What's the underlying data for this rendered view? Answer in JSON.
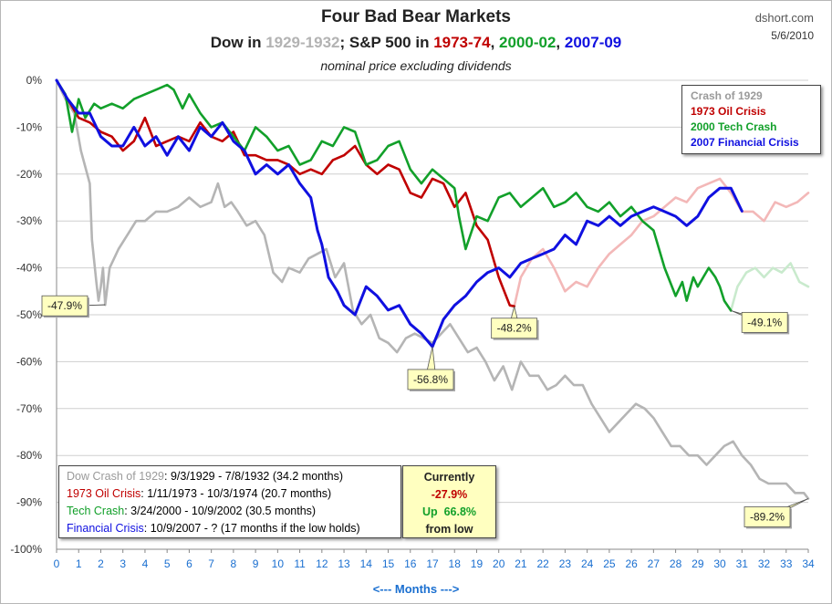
{
  "header": {
    "title": "Four Bad Bear Markets",
    "subtitle_parts": [
      {
        "text": "Dow in ",
        "color": "#222222"
      },
      {
        "text": "1929-1932",
        "color": "#b3b3b3"
      },
      {
        "text": "; S&P 500 in ",
        "color": "#222222"
      },
      {
        "text": "1973-74",
        "color": "#c00000"
      },
      {
        "text": ", ",
        "color": "#222222"
      },
      {
        "text": "2000-02",
        "color": "#12a02a"
      },
      {
        "text": ", ",
        "color": "#222222"
      },
      {
        "text": "2007-09",
        "color": "#1010e0"
      }
    ],
    "note": "nominal price excluding dividends",
    "source": "dshort.com",
    "date": "5/6/2010"
  },
  "legend": [
    {
      "label": "Crash of 1929",
      "color": "#9a9a9a"
    },
    {
      "label": "1973 Oil Crisis",
      "color": "#c00000"
    },
    {
      "label": "2000 Tech Crash",
      "color": "#12a02a"
    },
    {
      "label": "2007 Financial Crisis",
      "color": "#1010e0"
    }
  ],
  "info_box": {
    "rows": [
      {
        "label": "Dow Crash of 1929",
        "rest": ": 9/3/1929  - 7/8/1932  (34.2 months)",
        "color": "#9a9a9a"
      },
      {
        "label": "1973 Oil Crisis",
        "rest": ": 1/11/1973  - 10/3/1974  (20.7 months)",
        "color": "#c00000"
      },
      {
        "label": "Tech Crash",
        "rest": ":  3/24/2000  - 10/9/2002  (30.5 months)",
        "color": "#12a02a"
      },
      {
        "label": "Financial Crisis",
        "rest": ": 10/9/2007  - ?  (17 months if the low holds)",
        "color": "#1010e0"
      }
    ]
  },
  "current_box": {
    "line1": "Currently",
    "line2": "-27.9%",
    "line3_prefix": "Up",
    "line3_value": "66.8%",
    "line4": "from low"
  },
  "x_axis_caption": "<---  Months  --->",
  "chart_data": {
    "type": "line",
    "xlabel": "<---  Months  --->",
    "ylabel": "",
    "xlim": [
      0,
      34
    ],
    "ylim": [
      -100,
      0
    ],
    "x_ticks": [
      "0",
      "1",
      "2",
      "3",
      "4",
      "5",
      "6",
      "7",
      "8",
      "9",
      "10",
      "11",
      "12",
      "13",
      "14",
      "15",
      "16",
      "17",
      "18",
      "19",
      "20",
      "21",
      "22",
      "23",
      "24",
      "25",
      "26",
      "27",
      "28",
      "29",
      "30",
      "31",
      "32",
      "33",
      "34"
    ],
    "y_ticks": [
      "0%",
      "-10%",
      "-20%",
      "-30%",
      "-40%",
      "-50%",
      "-60%",
      "-70%",
      "-80%",
      "-90%",
      "-100%"
    ],
    "grid": true,
    "legend_position": "top-right",
    "series": [
      {
        "name": "Crash of 1929",
        "color": "#b5b5b5",
        "x": [
          0,
          0.4,
          0.8,
          1.1,
          1.5,
          1.6,
          1.8,
          1.9,
          2.0,
          2.1,
          2.2,
          2.4,
          2.8,
          3.2,
          3.6,
          4.0,
          4.5,
          5.0,
          5.5,
          6.0,
          6.5,
          7.0,
          7.3,
          7.6,
          7.9,
          8.2,
          8.6,
          9.0,
          9.4,
          9.8,
          10.2,
          10.5,
          11.0,
          11.4,
          11.8,
          12.2,
          12.6,
          13.0,
          13.4,
          13.8,
          14.2,
          14.6,
          15.0,
          15.4,
          15.8,
          16.2,
          16.6,
          17.0,
          17.4,
          17.8,
          18.2,
          18.6,
          19.0,
          19.4,
          19.8,
          20.2,
          20.6,
          21.0,
          21.4,
          21.8,
          22.2,
          22.6,
          23.0,
          23.4,
          23.8,
          24.2,
          24.6,
          25.0,
          25.4,
          25.8,
          26.2,
          26.6,
          27.0,
          27.4,
          27.8,
          28.2,
          28.6,
          29.0,
          29.4,
          29.8,
          30.2,
          30.6,
          31.0,
          31.4,
          31.8,
          32.2,
          32.6,
          33.0,
          33.4,
          33.8,
          34.0
        ],
        "y": [
          0,
          -4,
          -7,
          -15,
          -22,
          -34,
          -43,
          -47,
          -44,
          -40,
          -47.9,
          -40,
          -36,
          -33,
          -30,
          -30,
          -28,
          -28,
          -27,
          -25,
          -27,
          -26,
          -22,
          -27,
          -26,
          -28,
          -31,
          -30,
          -33,
          -41,
          -43,
          -40,
          -41,
          -38,
          -37,
          -36,
          -42,
          -39,
          -49,
          -52,
          -50,
          -55,
          -56,
          -58,
          -55,
          -54,
          -55,
          -56,
          -54,
          -52,
          -55,
          -58,
          -57,
          -60,
          -64,
          -61,
          -66,
          -60,
          -63,
          -63,
          -66,
          -65,
          -63,
          -65,
          -65,
          -69,
          -72,
          -75,
          -73,
          -71,
          -69,
          -70,
          -72,
          -75,
          -78,
          -78,
          -80,
          -80,
          -82,
          -80,
          -78,
          -77,
          -80,
          -82,
          -85,
          -86,
          -86,
          -86,
          -88,
          -88,
          -89.2
        ]
      },
      {
        "name": "1973 Oil Crisis",
        "color": "#c00000",
        "x": [
          0,
          0.5,
          1.0,
          1.5,
          2.0,
          2.5,
          3.0,
          3.5,
          4.0,
          4.5,
          5.0,
          5.5,
          6.0,
          6.5,
          7.0,
          7.5,
          8.0,
          8.5,
          9.0,
          9.5,
          10.0,
          10.5,
          11.0,
          11.5,
          12.0,
          12.5,
          13.0,
          13.5,
          14.0,
          14.5,
          15.0,
          15.5,
          16.0,
          16.5,
          17.0,
          17.5,
          18.0,
          18.5,
          19.0,
          19.5,
          20.0,
          20.5,
          20.7
        ],
        "y": [
          0,
          -4,
          -8,
          -9,
          -11,
          -12,
          -15,
          -13,
          -8,
          -14,
          -13,
          -12,
          -13,
          -9,
          -12,
          -13,
          -11,
          -16,
          -16,
          -17,
          -17,
          -18,
          -20,
          -19,
          -20,
          -17,
          -16,
          -14,
          -18,
          -20,
          -18,
          -19,
          -24,
          -25,
          -21,
          -22,
          -27,
          -24,
          -31,
          -34,
          -42,
          -48,
          -48.2
        ]
      },
      {
        "name": "1973 Oil Crisis (continued)",
        "color": "#f3b8b8",
        "x": [
          20.7,
          21.0,
          21.5,
          22.0,
          22.5,
          23.0,
          23.5,
          24.0,
          24.5,
          25.0,
          25.5,
          26.0,
          26.5,
          27.0,
          27.5,
          28.0,
          28.5,
          29.0,
          29.5,
          30.0,
          30.5,
          31.0,
          31.5,
          32.0,
          32.5,
          33.0,
          33.5,
          34.0
        ],
        "y": [
          -48.2,
          -42,
          -38,
          -36,
          -40,
          -45,
          -43,
          -44,
          -40,
          -37,
          -35,
          -33,
          -30,
          -29,
          -27,
          -25,
          -26,
          -23,
          -22,
          -21,
          -24,
          -28,
          -28,
          -30,
          -26,
          -27,
          -26,
          -24
        ]
      },
      {
        "name": "2000 Tech Crash",
        "color": "#12a02a",
        "x": [
          0,
          0.4,
          0.7,
          1.0,
          1.3,
          1.7,
          2.0,
          2.5,
          3.0,
          3.5,
          4.0,
          4.5,
          5.0,
          5.3,
          5.7,
          6.0,
          6.5,
          7.0,
          7.5,
          8.0,
          8.5,
          9.0,
          9.5,
          10.0,
          10.5,
          11.0,
          11.5,
          12.0,
          12.5,
          13.0,
          13.5,
          14.0,
          14.5,
          15.0,
          15.5,
          16.0,
          16.5,
          17.0,
          17.5,
          18.0,
          18.2,
          18.5,
          19.0,
          19.5,
          20.0,
          20.5,
          21.0,
          21.5,
          22.0,
          22.5,
          23.0,
          23.5,
          24.0,
          24.5,
          25.0,
          25.5,
          26.0,
          26.5,
          27.0,
          27.5,
          28.0,
          28.3,
          28.5,
          28.8,
          29.0,
          29.5,
          29.8,
          30.0,
          30.2,
          30.5
        ],
        "y": [
          0,
          -3,
          -11,
          -4,
          -8,
          -5,
          -6,
          -5,
          -6,
          -4,
          -3,
          -2,
          -1,
          -2,
          -6,
          -3,
          -7,
          -10,
          -9,
          -12,
          -15,
          -10,
          -12,
          -15,
          -14,
          -18,
          -17,
          -13,
          -14,
          -10,
          -11,
          -18,
          -17,
          -14,
          -13,
          -19,
          -22,
          -19,
          -21,
          -23,
          -29,
          -36,
          -29,
          -30,
          -25,
          -24,
          -27,
          -25,
          -23,
          -27,
          -26,
          -24,
          -27,
          -28,
          -26,
          -29,
          -27,
          -30,
          -32,
          -40,
          -46,
          -43,
          -47,
          -42,
          -44,
          -40,
          -42,
          -44,
          -47,
          -49.1
        ]
      },
      {
        "name": "2000 Tech Crash (continued)",
        "color": "#c9eacd",
        "x": [
          30.5,
          30.8,
          31.2,
          31.6,
          32.0,
          32.4,
          32.8,
          33.2,
          33.6,
          34.0
        ],
        "y": [
          -49.1,
          -44,
          -41,
          -40,
          -42,
          -40,
          -41,
          -39,
          -43,
          -44
        ]
      },
      {
        "name": "2007 Financial Crisis",
        "color": "#1010e0",
        "x": [
          0,
          0.5,
          1.0,
          1.5,
          2.0,
          2.5,
          3.0,
          3.5,
          4.0,
          4.5,
          5.0,
          5.5,
          6.0,
          6.5,
          7.0,
          7.5,
          8.0,
          8.5,
          9.0,
          9.5,
          10.0,
          10.5,
          11.0,
          11.5,
          11.8,
          12.0,
          12.3,
          12.7,
          13.0,
          13.5,
          14.0,
          14.5,
          15.0,
          15.5,
          16.0,
          16.5,
          17.0,
          17.5,
          18.0,
          18.5,
          19.0,
          19.5,
          20.0,
          20.5,
          21.0,
          21.5,
          22.0,
          22.5,
          23.0,
          23.5,
          24.0,
          24.5,
          25.0,
          25.5,
          26.0,
          26.5,
          27.0,
          27.5,
          28.0,
          28.5,
          29.0,
          29.5,
          30.0,
          30.5,
          31.0
        ],
        "y": [
          0,
          -4,
          -7,
          -7,
          -12,
          -14,
          -14,
          -10,
          -14,
          -12,
          -16,
          -12,
          -15,
          -10,
          -12,
          -9,
          -13,
          -15,
          -20,
          -18,
          -20,
          -18,
          -22,
          -25,
          -32,
          -35,
          -42,
          -45,
          -48,
          -50,
          -44,
          -46,
          -49,
          -48,
          -52,
          -54,
          -56.8,
          -51,
          -48,
          -46,
          -43,
          -41,
          -40,
          -42,
          -39,
          -38,
          -37,
          -36,
          -33,
          -35,
          -30,
          -31,
          -29,
          -31,
          -29,
          -28,
          -27,
          -28,
          -29,
          -31,
          -29,
          -25,
          -23,
          -23,
          -27.9
        ]
      }
    ],
    "annotations": [
      {
        "text": "-47.9%",
        "x": 2.2,
        "y": -47.9
      },
      {
        "text": "-56.8%",
        "x": 17.0,
        "y": -56.8
      },
      {
        "text": "-48.2%",
        "x": 20.7,
        "y": -48.2
      },
      {
        "text": "-49.1%",
        "x": 30.5,
        "y": -49.1
      },
      {
        "text": "-89.2%",
        "x": 34.0,
        "y": -89.2
      }
    ]
  }
}
